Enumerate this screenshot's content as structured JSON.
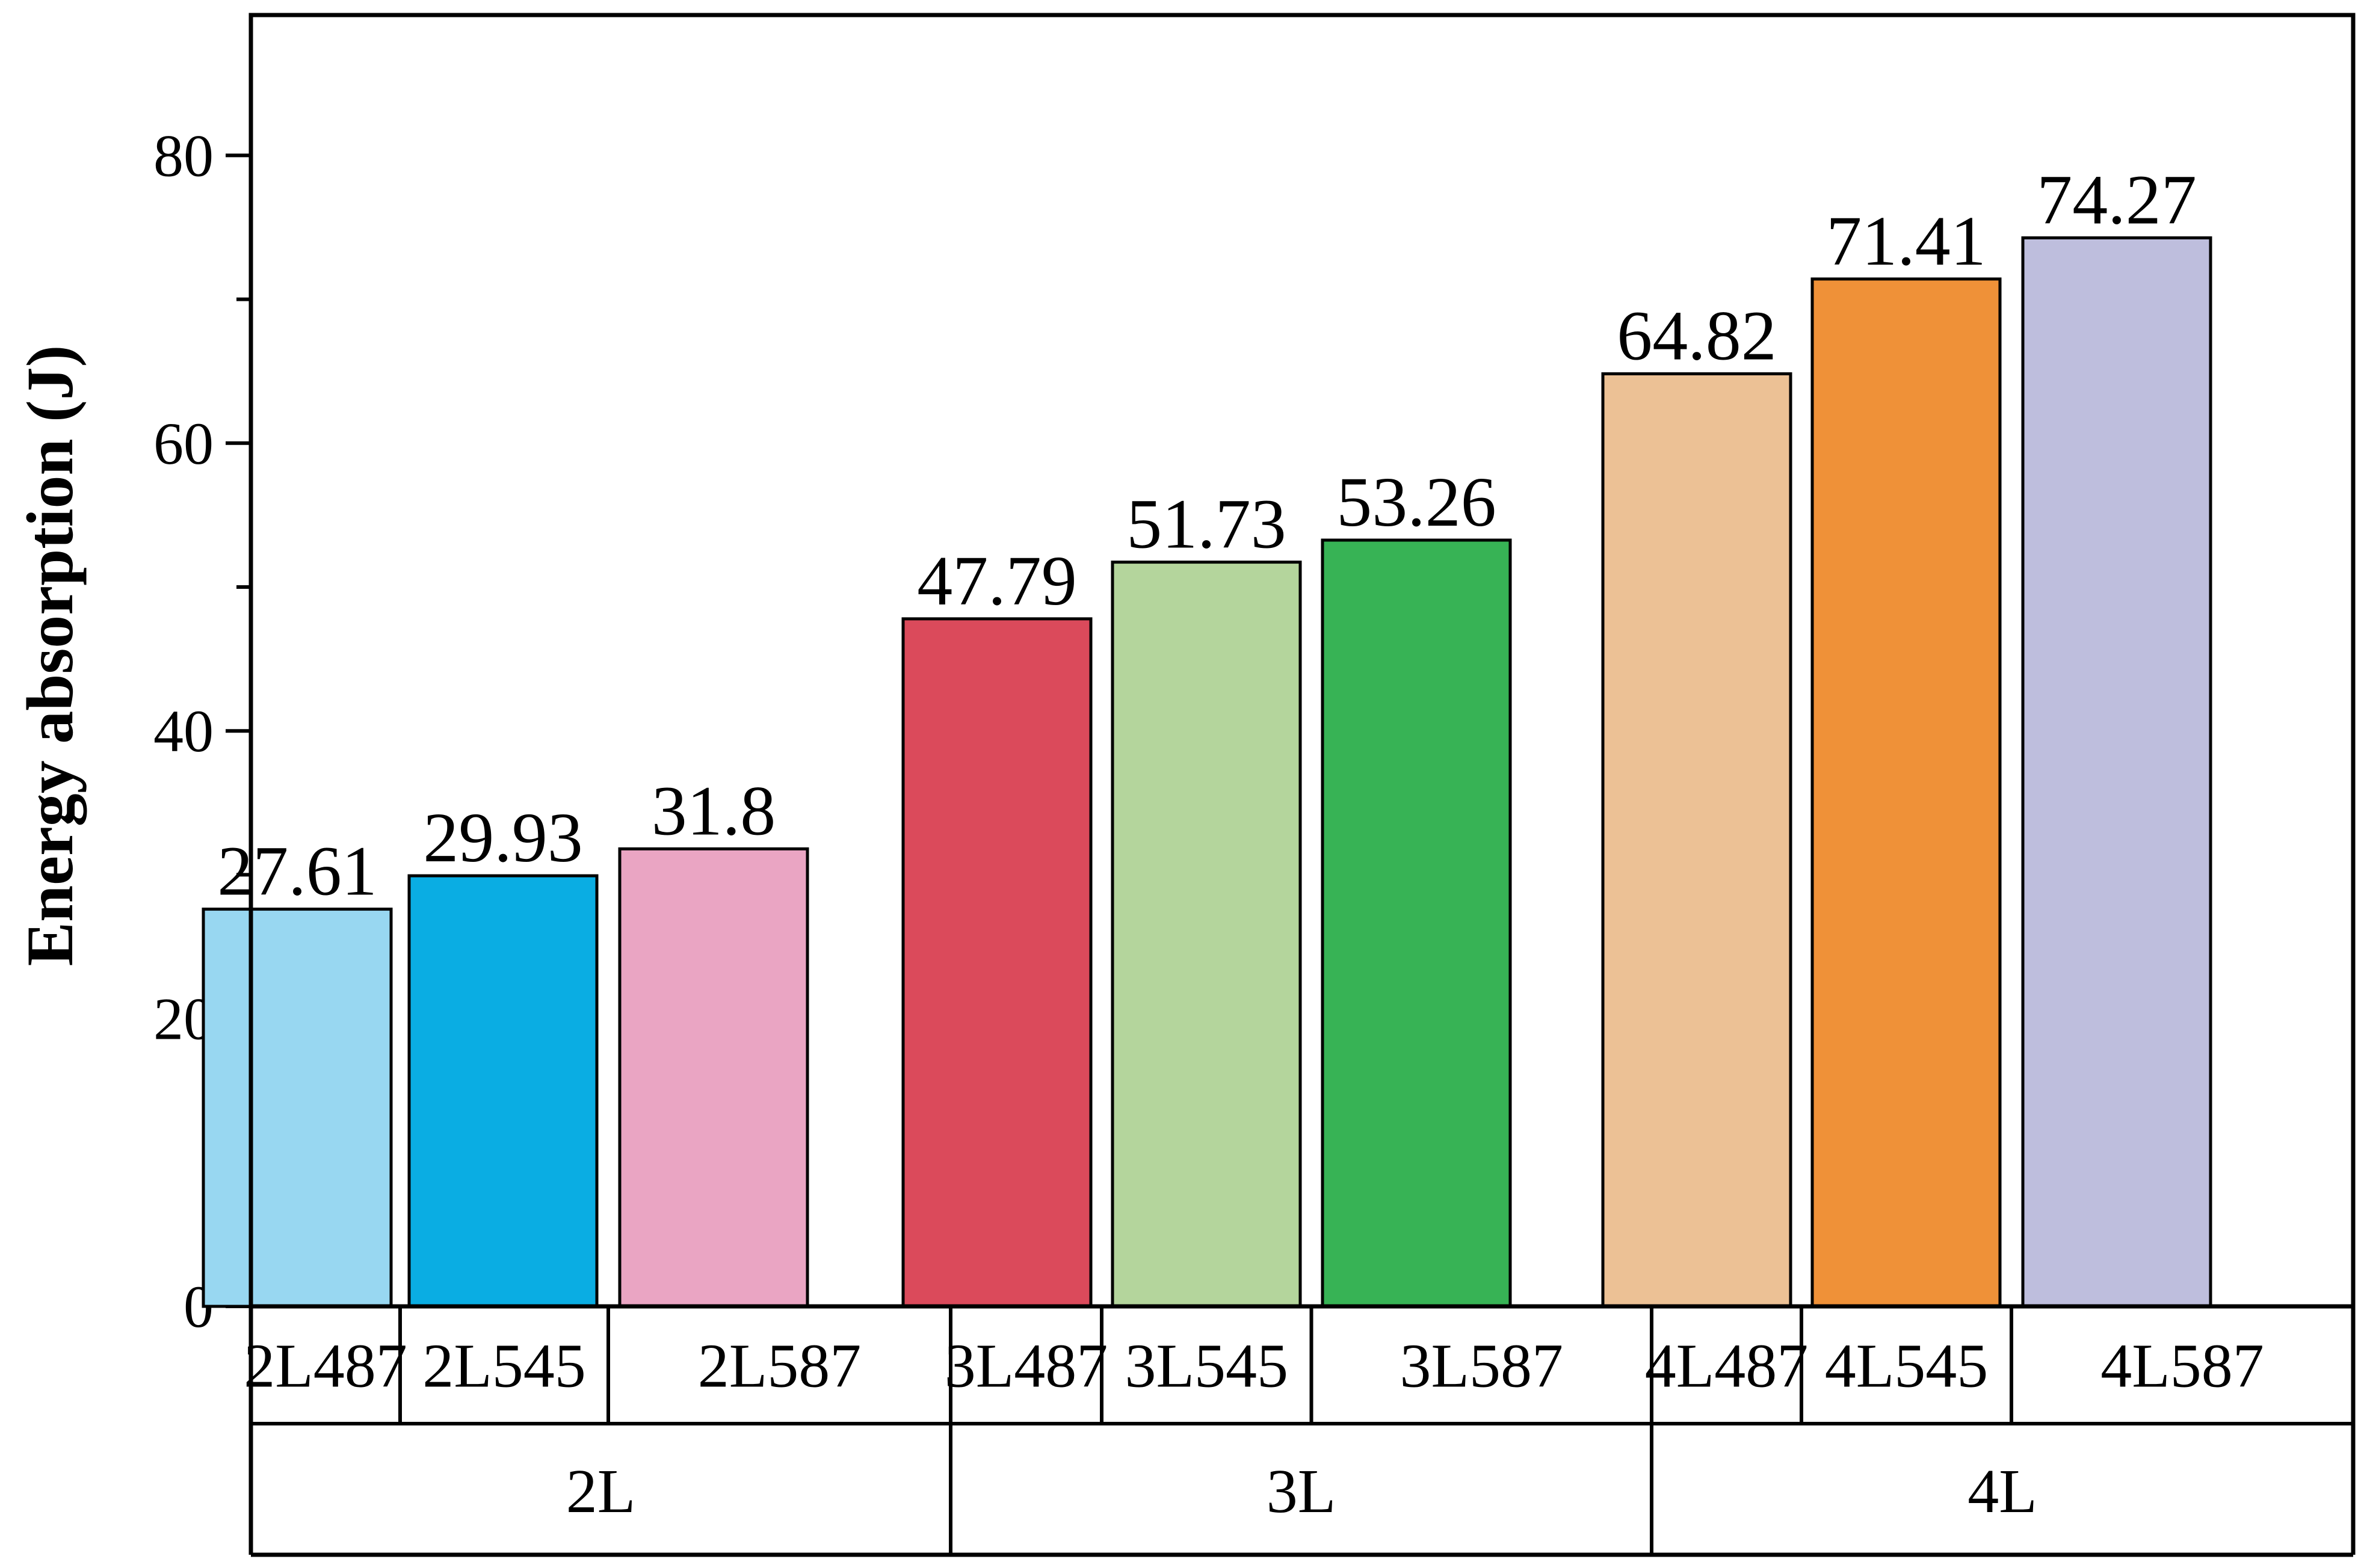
{
  "chart_data": {
    "type": "bar",
    "ylabel": "Energy absorption (J)",
    "xlabel": "",
    "ylim": [
      0,
      90
    ],
    "yticks": [
      0,
      20,
      40,
      60,
      80
    ],
    "ytick_labels": [
      "0",
      "20",
      "40",
      "60",
      "80"
    ],
    "grid": false,
    "categories": [
      "2L487",
      "2L545",
      "2L587",
      "3L487",
      "3L545",
      "3L587",
      "4L487",
      "4L545",
      "4L587"
    ],
    "values": [
      27.61,
      29.93,
      31.8,
      47.79,
      51.73,
      53.26,
      64.82,
      71.41,
      74.27
    ],
    "value_labels": [
      "27.61",
      "29.93",
      "31.8",
      "47.79",
      "51.73",
      "53.26",
      "64.82",
      "71.41",
      "74.27"
    ],
    "colors": [
      "#98D7F1",
      "#0AADE3",
      "#EAA5C3",
      "#DB4A5B",
      "#B4D59C",
      "#37B355",
      "#ECC195",
      "#EF9138",
      "#BEBEDD"
    ],
    "groups": [
      {
        "label": "2L",
        "members": [
          "2L487",
          "2L545",
          "2L587"
        ]
      },
      {
        "label": "3L",
        "members": [
          "3L487",
          "3L545",
          "3L587"
        ]
      },
      {
        "label": "4L",
        "members": [
          "4L487",
          "4L545",
          "4L587"
        ]
      }
    ]
  }
}
